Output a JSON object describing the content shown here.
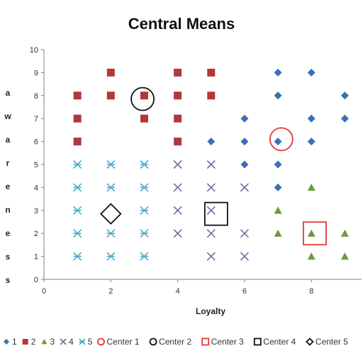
{
  "chart_data": {
    "type": "scatter",
    "title": "Central Means",
    "xlabel": "Loyalty",
    "ylabel": "Awareness",
    "ylabel_letters": [
      "a",
      "w",
      "a",
      "r",
      "e",
      "n",
      "e",
      "s",
      "s"
    ],
    "xlim": [
      0,
      9.5
    ],
    "ylim": [
      0,
      10
    ],
    "x_ticks": [
      "0",
      "2",
      "4",
      "6",
      "8"
    ],
    "x_tick_values": [
      0,
      2,
      4,
      6,
      8
    ],
    "y_ticks": [
      "0",
      "1",
      "2",
      "3",
      "4",
      "5",
      "6",
      "7",
      "8",
      "9",
      "10"
    ],
    "y_tick_values": [
      0,
      1,
      2,
      3,
      4,
      5,
      6,
      7,
      8,
      9,
      10
    ],
    "grid": false,
    "legend_position": "bottom",
    "series": [
      {
        "name": "1",
        "marker": "diamond",
        "color": "#3b6fb6",
        "points": [
          [
            7,
            9
          ],
          [
            8,
            9
          ],
          [
            7,
            8
          ],
          [
            9,
            8
          ],
          [
            6,
            7
          ],
          [
            8,
            7
          ],
          [
            9,
            7
          ],
          [
            5,
            6
          ],
          [
            6,
            6
          ],
          [
            7,
            6
          ],
          [
            8,
            6
          ],
          [
            6,
            5
          ],
          [
            7,
            5
          ],
          [
            7,
            4
          ]
        ]
      },
      {
        "name": "2",
        "marker": "square",
        "color": "#b0393b",
        "points": [
          [
            2,
            9
          ],
          [
            4,
            9
          ],
          [
            5,
            9
          ],
          [
            1,
            8
          ],
          [
            2,
            8
          ],
          [
            3,
            8
          ],
          [
            4,
            8
          ],
          [
            5,
            8
          ],
          [
            1,
            7
          ],
          [
            3,
            7
          ],
          [
            4,
            7
          ],
          [
            1,
            6
          ],
          [
            4,
            6
          ]
        ]
      },
      {
        "name": "3",
        "marker": "triangle",
        "color": "#6e9a3a",
        "points": [
          [
            8,
            4
          ],
          [
            7,
            3
          ],
          [
            7,
            2
          ],
          [
            8,
            2
          ],
          [
            9,
            2
          ],
          [
            8,
            1
          ],
          [
            9,
            1
          ]
        ]
      },
      {
        "name": "4",
        "marker": "x",
        "color": "#8064a2",
        "points": [
          [
            4,
            5
          ],
          [
            5,
            5
          ],
          [
            4,
            4
          ],
          [
            5,
            4
          ],
          [
            6,
            4
          ],
          [
            4,
            3
          ],
          [
            5,
            3
          ],
          [
            4,
            2
          ],
          [
            5,
            2
          ],
          [
            6,
            2
          ],
          [
            5,
            1
          ],
          [
            6,
            1
          ]
        ]
      },
      {
        "name": "5",
        "marker": "star",
        "color": "#4bacc6",
        "points": [
          [
            1,
            5
          ],
          [
            2,
            5
          ],
          [
            3,
            5
          ],
          [
            1,
            4
          ],
          [
            2,
            4
          ],
          [
            3,
            4
          ],
          [
            1,
            3
          ],
          [
            3,
            3
          ],
          [
            1,
            2
          ],
          [
            2,
            2
          ],
          [
            3,
            2
          ],
          [
            1,
            1
          ],
          [
            2,
            1
          ],
          [
            3,
            1
          ]
        ]
      }
    ],
    "centers": [
      {
        "name": "Center 1",
        "shape": "circle",
        "color": "#e53935",
        "x": 7.1,
        "y": 6.1
      },
      {
        "name": "Center 2",
        "shape": "circle",
        "color": "#111111",
        "x": 2.95,
        "y": 7.85
      },
      {
        "name": "Center 3",
        "shape": "square",
        "color": "#e53935",
        "x": 8.1,
        "y": 2.0
      },
      {
        "name": "Center 4",
        "shape": "square",
        "color": "#111111",
        "x": 5.15,
        "y": 2.85
      },
      {
        "name": "Center 5",
        "shape": "diamond",
        "color": "#111111",
        "x": 2.0,
        "y": 2.85
      }
    ],
    "legend": [
      {
        "label": "1",
        "marker": "diamond",
        "color": "#3b6fb6"
      },
      {
        "label": "2",
        "marker": "square",
        "color": "#b0393b"
      },
      {
        "label": "3",
        "marker": "triangle",
        "color": "#6e9a3a"
      },
      {
        "label": "4",
        "marker": "x",
        "color": "#8064a2"
      },
      {
        "label": "5",
        "marker": "star",
        "color": "#4bacc6"
      },
      {
        "label": "Center 1",
        "marker": "circle-open",
        "color": "#e53935"
      },
      {
        "label": "Center 2",
        "marker": "circle-open",
        "color": "#111111"
      },
      {
        "label": "Center 3",
        "marker": "square-open",
        "color": "#e53935"
      },
      {
        "label": "Center 4",
        "marker": "square-open",
        "color": "#111111"
      },
      {
        "label": "Center 5",
        "marker": "diamond-open",
        "color": "#111111"
      }
    ]
  }
}
